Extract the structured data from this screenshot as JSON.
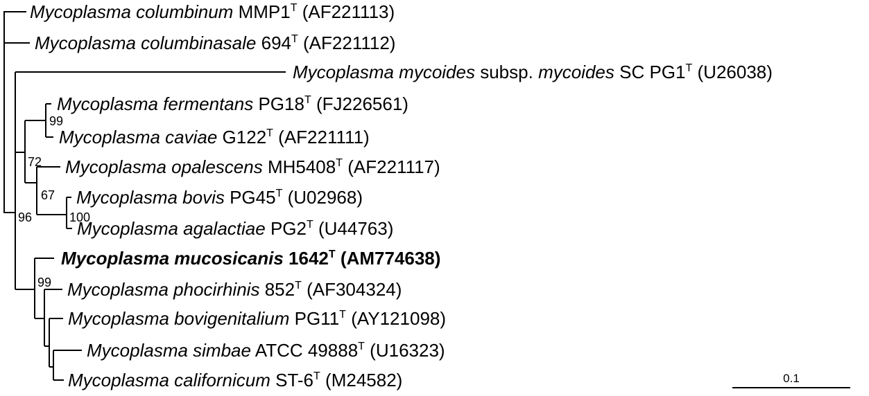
{
  "taxa": [
    {
      "genus": "Mycoplasma columbinum",
      "pre": "",
      "mid": "",
      "strain": "MMP1",
      "sup": "T",
      "acc": "(AF221113)",
      "bold": false
    },
    {
      "genus": "Mycoplasma columbinasale",
      "pre": "",
      "mid": "",
      "strain": "694",
      "sup": "T",
      "acc": "(AF221112)",
      "bold": false
    },
    {
      "genus": "Mycoplasma mycoides",
      "pre": "subsp.",
      "mid": "mycoides",
      "strain": "SC PG1",
      "sup": "T",
      "acc": "(U26038)",
      "bold": false
    },
    {
      "genus": "Mycoplasma fermentans",
      "pre": "",
      "mid": "",
      "strain": "PG18",
      "sup": "T",
      "acc": "(FJ226561)",
      "bold": false
    },
    {
      "genus": "Mycoplasma caviae",
      "pre": "",
      "mid": "",
      "strain": "G122",
      "sup": "T",
      "acc": "(AF221111)",
      "bold": false
    },
    {
      "genus": "Mycoplasma opalescens",
      "pre": "",
      "mid": "",
      "strain": "MH5408",
      "sup": "T",
      "acc": "(AF221117)",
      "bold": false
    },
    {
      "genus": "Mycoplasma bovis",
      "pre": "",
      "mid": "",
      "strain": "PG45",
      "sup": "T",
      "acc": "(U02968)",
      "bold": false
    },
    {
      "genus": "Mycoplasma agalactiae",
      "pre": "",
      "mid": "",
      "strain": "PG2",
      "sup": "T",
      "acc": "(U44763)",
      "bold": false
    },
    {
      "genus": "Mycoplasma mucosicanis",
      "pre": "",
      "mid": "",
      "strain": "1642",
      "sup": "T",
      "acc": "(AM774638)",
      "bold": true
    },
    {
      "genus": "Mycoplasma phocirhinis",
      "pre": "",
      "mid": "",
      "strain": "852",
      "sup": "T",
      "acc": "(AF304324)",
      "bold": false
    },
    {
      "genus": "Mycoplasma bovigenitalium",
      "pre": "",
      "mid": "",
      "strain": "PG11",
      "sup": "T",
      "acc": "(AY121098)",
      "bold": false
    },
    {
      "genus": "Mycoplasma simbae",
      "pre": "",
      "mid": "",
      "strain": "ATCC 49888",
      "sup": "T",
      "acc": "(U16323)",
      "bold": false
    },
    {
      "genus": "Mycoplasma californicum",
      "pre": "",
      "mid": "",
      "strain": "ST-6",
      "sup": "T",
      "acc": "(M24582)",
      "bold": false
    }
  ],
  "bootstrap": [
    "99",
    "72",
    "67",
    "100",
    "96",
    "99"
  ],
  "scale_bar": {
    "label": "0.1"
  }
}
